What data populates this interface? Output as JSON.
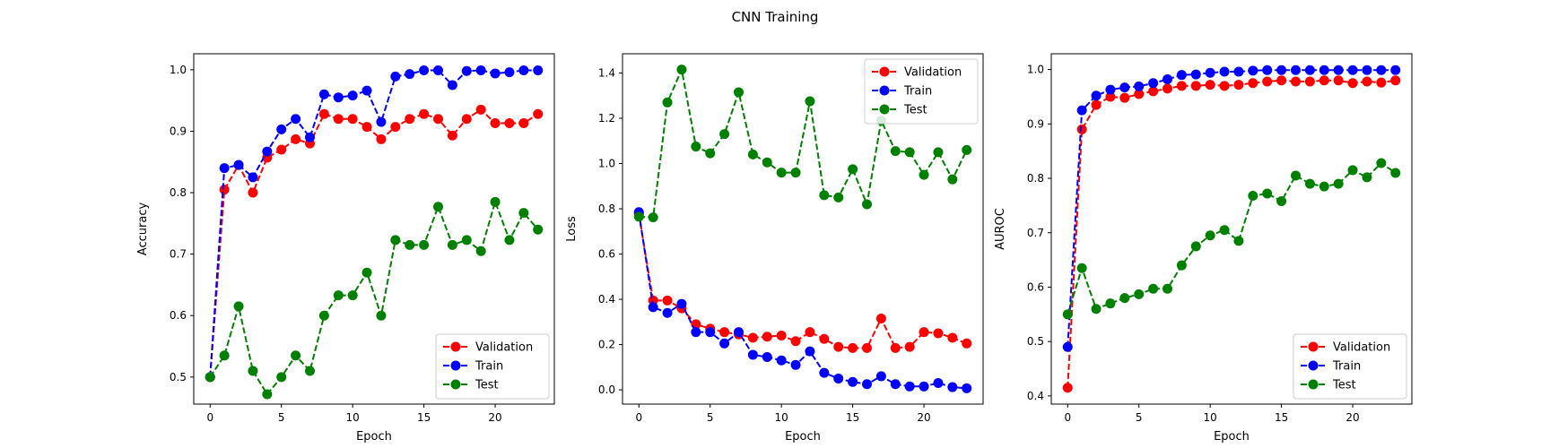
{
  "figure": {
    "title": "CNN Training"
  },
  "colors": {
    "Validation": "#ff0000",
    "Train": "#0000ff",
    "Test": "#008000"
  },
  "chart_data": [
    {
      "type": "line",
      "xlabel": "Epoch",
      "ylabel": "Accuracy",
      "xlim": [
        -1.15,
        24.15
      ],
      "ylim": [
        0.456,
        1.026
      ],
      "xticks": [
        0,
        5,
        10,
        15,
        20
      ],
      "yticks": [
        0.5,
        0.6,
        0.7,
        0.8,
        0.9,
        1.0
      ],
      "ytick_labels": [
        "0.5",
        "0.6",
        "0.7",
        "0.8",
        "0.9",
        "1.0"
      ],
      "grid": false,
      "legend_position": "lower-right",
      "x": [
        0,
        1,
        2,
        3,
        4,
        5,
        6,
        7,
        8,
        9,
        10,
        11,
        12,
        13,
        14,
        15,
        16,
        17,
        18,
        19,
        20,
        21,
        22,
        23
      ],
      "series": [
        {
          "name": "Validation",
          "values": [
            0.5,
            0.805,
            0.845,
            0.8,
            0.857,
            0.87,
            0.887,
            0.88,
            0.928,
            0.92,
            0.92,
            0.907,
            0.887,
            0.907,
            0.92,
            0.928,
            0.92,
            0.893,
            0.92,
            0.935,
            0.913,
            0.913,
            0.913,
            0.928
          ]
        },
        {
          "name": "Train",
          "values": [
            0.5,
            0.84,
            0.845,
            0.825,
            0.867,
            0.903,
            0.92,
            0.89,
            0.96,
            0.955,
            0.958,
            0.966,
            0.915,
            0.989,
            0.993,
            0.999,
            0.999,
            0.975,
            0.998,
            0.999,
            0.994,
            0.996,
            0.999,
            0.999
          ]
        },
        {
          "name": "Test",
          "values": [
            0.5,
            0.535,
            0.615,
            0.51,
            0.472,
            0.5,
            0.535,
            0.51,
            0.6,
            0.633,
            0.633,
            0.67,
            0.6,
            0.723,
            0.715,
            0.715,
            0.777,
            0.715,
            0.723,
            0.705,
            0.785,
            0.723,
            0.767,
            0.74
          ]
        }
      ]
    },
    {
      "type": "line",
      "xlabel": "Epoch",
      "ylabel": "Loss",
      "xlim": [
        -1.15,
        24.15
      ],
      "ylim": [
        -0.063,
        1.485
      ],
      "xticks": [
        0,
        5,
        10,
        15,
        20
      ],
      "yticks": [
        0.0,
        0.2,
        0.4,
        0.6,
        0.8,
        1.0,
        1.2,
        1.4
      ],
      "ytick_labels": [
        "0.0",
        "0.2",
        "0.4",
        "0.6",
        "0.8",
        "1.0",
        "1.2",
        "1.4"
      ],
      "grid": false,
      "legend_position": "upper-right",
      "x": [
        0,
        1,
        2,
        3,
        4,
        5,
        6,
        7,
        8,
        9,
        10,
        11,
        12,
        13,
        14,
        15,
        16,
        17,
        18,
        19,
        20,
        21,
        22,
        23
      ],
      "series": [
        {
          "name": "Validation",
          "values": [
            0.775,
            0.395,
            0.395,
            0.36,
            0.29,
            0.27,
            0.255,
            0.245,
            0.23,
            0.235,
            0.24,
            0.215,
            0.255,
            0.225,
            0.19,
            0.185,
            0.185,
            0.315,
            0.185,
            0.19,
            0.255,
            0.25,
            0.23,
            0.205
          ]
        },
        {
          "name": "Train",
          "values": [
            0.785,
            0.365,
            0.34,
            0.38,
            0.255,
            0.255,
            0.205,
            0.255,
            0.155,
            0.145,
            0.13,
            0.11,
            0.17,
            0.075,
            0.05,
            0.035,
            0.025,
            0.06,
            0.025,
            0.015,
            0.015,
            0.03,
            0.012,
            0.007
          ]
        },
        {
          "name": "Test",
          "values": [
            0.765,
            0.762,
            1.27,
            1.415,
            1.075,
            1.045,
            1.13,
            1.315,
            1.04,
            1.005,
            0.96,
            0.96,
            1.275,
            0.86,
            0.85,
            0.975,
            0.82,
            1.19,
            1.055,
            1.05,
            0.95,
            1.05,
            0.93,
            1.06
          ]
        }
      ]
    },
    {
      "type": "line",
      "xlabel": "Epoch",
      "ylabel": "AUROC",
      "xlim": [
        -1.15,
        24.15
      ],
      "ylim": [
        0.385,
        1.029
      ],
      "xticks": [
        0,
        5,
        10,
        15,
        20
      ],
      "yticks": [
        0.4,
        0.5,
        0.6,
        0.7,
        0.8,
        0.9,
        1.0
      ],
      "ytick_labels": [
        "0.4",
        "0.5",
        "0.6",
        "0.7",
        "0.8",
        "0.9",
        "1.0"
      ],
      "grid": false,
      "legend_position": "lower-right",
      "x": [
        0,
        1,
        2,
        3,
        4,
        5,
        6,
        7,
        8,
        9,
        10,
        11,
        12,
        13,
        14,
        15,
        16,
        17,
        18,
        19,
        20,
        21,
        22,
        23
      ],
      "series": [
        {
          "name": "Validation",
          "values": [
            0.415,
            0.89,
            0.935,
            0.95,
            0.948,
            0.955,
            0.96,
            0.965,
            0.97,
            0.97,
            0.972,
            0.97,
            0.972,
            0.975,
            0.978,
            0.98,
            0.978,
            0.978,
            0.98,
            0.98,
            0.975,
            0.978,
            0.976,
            0.98
          ]
        },
        {
          "name": "Train",
          "values": [
            0.49,
            0.925,
            0.952,
            0.963,
            0.967,
            0.969,
            0.975,
            0.982,
            0.99,
            0.991,
            0.994,
            0.996,
            0.996,
            0.998,
            0.999,
            0.999,
            0.999,
            0.999,
            0.999,
            0.999,
            0.999,
            0.999,
            0.999,
            0.999
          ]
        },
        {
          "name": "Test",
          "values": [
            0.55,
            0.635,
            0.56,
            0.57,
            0.58,
            0.587,
            0.597,
            0.597,
            0.64,
            0.675,
            0.695,
            0.705,
            0.685,
            0.768,
            0.772,
            0.758,
            0.805,
            0.79,
            0.785,
            0.79,
            0.815,
            0.802,
            0.828,
            0.81
          ]
        }
      ]
    }
  ]
}
